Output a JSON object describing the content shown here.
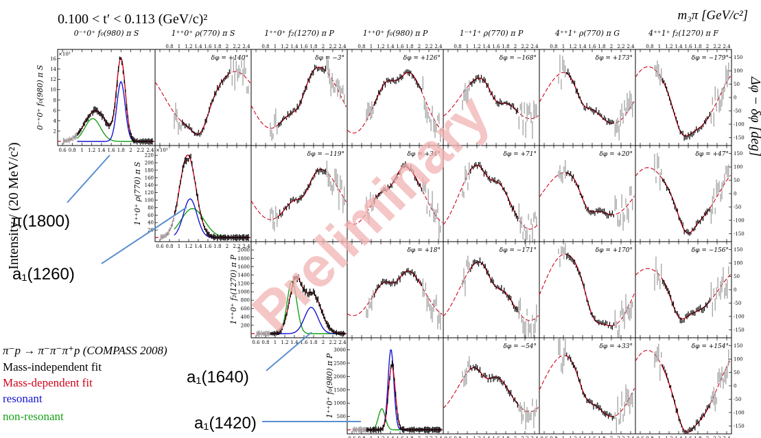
{
  "header": {
    "range_label": "0.100 < t′ < 0.113 (GeV/c)²",
    "mass_axis_label": "m₃π  [GeV/c²]",
    "intensity_axis_label": "Intensity / (20 MeV/c²)",
    "phase_axis_label": "Δφ − δφ [deg]",
    "watermark": "Preliminary"
  },
  "legend": {
    "reaction": "π⁻p → π⁻π⁻π⁺p (COMPASS 2008)",
    "mass_independent": "Mass-independent fit",
    "mass_dependent": "Mass-dependent fit",
    "resonant": "resonant",
    "non_resonant": "non-resonant"
  },
  "annotations": [
    {
      "text": "π(1800)"
    },
    {
      "text": "a₁(1260)"
    },
    {
      "text": "a₁(1640)"
    },
    {
      "text": "a₁(1420)"
    }
  ],
  "colors": {
    "data": "#000000",
    "data_gray": "#9a9a9a",
    "mass_dependent": "#d0021b",
    "resonant": "#1414d2",
    "non_resonant": "#16a016",
    "arrow": "#5a8fd0",
    "watermark": "#f2b4b4"
  },
  "chart_data": {
    "type": "line",
    "x_ticks": [
      "0.6",
      "0.8",
      "1",
      "1.2",
      "1.4",
      "1.6",
      "1.8",
      "2",
      "2.2",
      "2.4"
    ],
    "x_range": [
      0.5,
      2.5
    ],
    "phase_ticks": [
      "150",
      "100",
      "50",
      "0",
      "-50",
      "-100",
      "-150"
    ],
    "phase_range": [
      -180,
      180
    ],
    "columns": [
      "0⁻⁺0⁺ f₀(980) π S",
      "1⁺⁺0⁺ ρ(770) π S",
      "1⁺⁺0⁺ f₂(1270) π P",
      "1⁺⁺0⁺ f₀(980) π P",
      "1⁻⁺1⁺ ρ(770) π P",
      "4⁺⁺1⁺ ρ(770) π G",
      "4⁺⁺1⁺ f₂(1270) π F"
    ],
    "rows": [
      {
        "wave": "0⁻⁺0⁺ f₀(980) π S",
        "intensity_scale": "×10³",
        "intensity_ticks": [
          "16",
          "14",
          "12",
          "10",
          "8",
          "6",
          "4",
          "2"
        ],
        "intensity_range": [
          0,
          17
        ],
        "phase_offsets": [
          "δφ = +140°",
          "δφ = −3°",
          "δφ = +126°",
          "δφ = −168°",
          "δφ = +173°",
          "δφ = −179°"
        ]
      },
      {
        "wave": "1⁺⁺0⁺ ρ(770) π S",
        "intensity_scale": "×10³",
        "intensity_ticks": [
          "220",
          "200",
          "180",
          "160",
          "140",
          "120",
          "100",
          "80",
          "60",
          "40",
          "20"
        ],
        "intensity_range": [
          0,
          235
        ],
        "phase_offsets": [
          "δφ = −119°",
          "δφ = +34°",
          "δφ = +71°",
          "δφ = +20°",
          "δφ = +47°"
        ]
      },
      {
        "wave": "1⁺⁺0⁺ f₂(1270) π P",
        "intensity_scale": "",
        "intensity_ticks": [
          "2000",
          "1800",
          "1600",
          "1400",
          "1200",
          "1000",
          "800",
          "600",
          "400",
          "200"
        ],
        "intensity_range": [
          0,
          2100
        ],
        "phase_offsets": [
          "δφ = +18°",
          "δφ = −171°",
          "δφ = +170°",
          "δφ = −156°"
        ]
      },
      {
        "wave": "1⁺⁺0⁺ f₀(980) π P",
        "intensity_scale": "",
        "intensity_ticks": [
          "3000",
          "2500",
          "2000",
          "1500",
          "1000",
          "500"
        ],
        "intensity_range": [
          0,
          3300
        ],
        "phase_offsets": [
          "δφ = −54°",
          "δφ = +33°",
          "δφ = +154°"
        ]
      }
    ]
  }
}
